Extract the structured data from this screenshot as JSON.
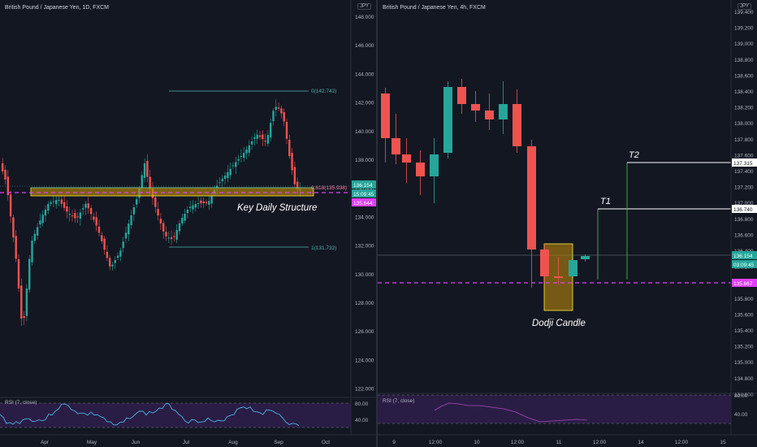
{
  "colors": {
    "background": "#131722",
    "bull": "#26a69a",
    "bear": "#ef5350",
    "magenta": "#e040fb",
    "zone_fill": "#b8860b",
    "zone_border": "#ffeb3b",
    "fib": "#4db6ac",
    "rsi_line": "#4fc3f7",
    "rsi_line_right": "#ab47bc",
    "rsi_band": "#2a1d45",
    "target_line": "#ffffff",
    "target_vline": "#4caf50",
    "axis_text": "#b2b5be"
  },
  "left_chart": {
    "title": "British Pound / Japanese Yen, 1D, FXCM",
    "currency": "JPY",
    "y_ticks": [
      "148.000",
      "146.000",
      "144.000",
      "142.000",
      "140.000",
      "138.000",
      "136.000",
      "134.000",
      "132.000",
      "130.000",
      "128.000",
      "126.000",
      "124.000",
      "122.000"
    ],
    "x_ticks": [
      "Apr",
      "May",
      "Jun",
      "Jul",
      "Aug",
      "Sep",
      "Oct"
    ],
    "price_tag": "136.154",
    "countdown_tag": "15:09:45",
    "magenta_tag": "135.644",
    "fib_top_label": "0(142.742)",
    "fib_mid_label": "0.618(135.938)",
    "fib_bottom_label": "1(131.732)",
    "annotation": "Key Daily Structure",
    "rsi_label": "RSI (7, close)",
    "rsi_ticks": [
      "80.00",
      "40.00"
    ]
  },
  "right_chart": {
    "title": "British Pound / Japanese Yen, 4h, FXCM",
    "currency": "JPY",
    "y_ticks": [
      "139.400",
      "139.200",
      "139.000",
      "138.800",
      "138.600",
      "138.400",
      "138.200",
      "138.000",
      "137.800",
      "137.600",
      "137.400",
      "137.200",
      "137.000",
      "136.800",
      "136.600",
      "136.400",
      "136.200",
      "136.000",
      "135.800",
      "135.600",
      "135.400",
      "135.200",
      "135.000",
      "134.800",
      "134.600"
    ],
    "x_ticks": [
      "9",
      "12:00",
      "10",
      "12:00",
      "11",
      "12:00",
      "14",
      "12:00",
      "15"
    ],
    "price_tag": "136.154",
    "countdown_tag": "03:09:45",
    "magenta_tag": "135.667",
    "t1_label": "T1",
    "t1_tag": "136.740",
    "t2_label": "T2",
    "t2_tag": "137.315",
    "annotation": "Dodji Candle",
    "rsi_label": "RSI (7, close)",
    "rsi_ticks": [
      "80.00",
      "40.00"
    ]
  }
}
